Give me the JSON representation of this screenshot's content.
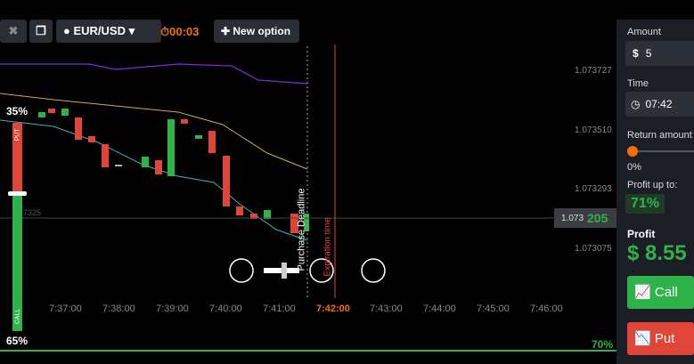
{
  "toolbar": {
    "pair": "EUR/USD",
    "timer": "00:03",
    "new_option": "New option"
  },
  "chart": {
    "put_percent": "35%",
    "call_percent": "65%",
    "put_label": "PUT",
    "call_label": "CALL",
    "purchase_deadline": "Purchase Deadline",
    "expiration_time": "Expiration time",
    "price_ticks": [
      "1.073727",
      "1.073510",
      "1.073293",
      "1.073075"
    ],
    "current_price": {
      "prefix": "1.073",
      "suffix": "205"
    },
    "side_price": "7325",
    "bottom_percent": "70%",
    "time_labels": [
      "7:37:00",
      "7:38:00",
      "7:39:00",
      "7:40:00",
      "7:41:00",
      "7:42:00",
      "7:43:00",
      "7:44:00",
      "7:45:00",
      "7:46:00"
    ]
  },
  "panel": {
    "amount_label": "Amount",
    "currency": "$",
    "amount": "5",
    "time_label": "Time",
    "time": "07:42",
    "return_label": "Return amount",
    "return_value": "0%",
    "profit_up_label": "Profit up to:",
    "profit_up": "71%",
    "profit_label": "Profit",
    "profit_currency": "$",
    "profit": "8.55",
    "call": "Call",
    "put": "Put"
  }
}
